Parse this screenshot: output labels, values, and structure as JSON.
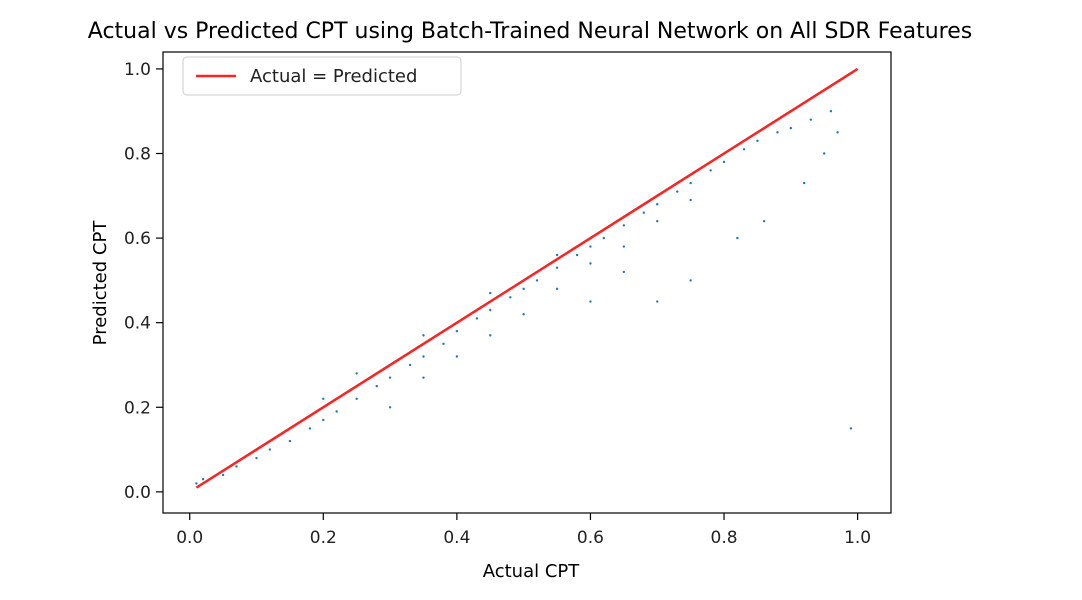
{
  "chart_data": {
    "type": "scatter",
    "title": "Actual vs Predicted CPT using Batch-Trained Neural Network on All SDR Features",
    "xlabel": "Actual CPT",
    "ylabel": "Predicted CPT",
    "xlim": [
      -0.04,
      1.05
    ],
    "ylim": [
      -0.05,
      1.04
    ],
    "xticks": [
      0.0,
      0.2,
      0.4,
      0.6,
      0.8,
      1.0
    ],
    "xtick_labels": [
      "0.0",
      "0.2",
      "0.4",
      "0.6",
      "0.8",
      "1.0"
    ],
    "yticks": [
      0.0,
      0.2,
      0.4,
      0.6,
      0.8,
      1.0
    ],
    "ytick_labels": [
      "0.0",
      "0.2",
      "0.4",
      "0.6",
      "0.8",
      "1.0"
    ],
    "grid": false,
    "legend": {
      "placement": "top-left",
      "entries": [
        "Actual = Predicted"
      ]
    },
    "series": [
      {
        "type": "scatter",
        "color": "#1f77b4",
        "points": [
          [
            0.01,
            0.02
          ],
          [
            0.02,
            0.03
          ],
          [
            0.03,
            0.03
          ],
          [
            0.05,
            0.04
          ],
          [
            0.07,
            0.06
          ],
          [
            0.1,
            0.08
          ],
          [
            0.12,
            0.1
          ],
          [
            0.15,
            0.12
          ],
          [
            0.18,
            0.15
          ],
          [
            0.2,
            0.17
          ],
          [
            0.22,
            0.19
          ],
          [
            0.25,
            0.22
          ],
          [
            0.28,
            0.25
          ],
          [
            0.3,
            0.27
          ],
          [
            0.33,
            0.3
          ],
          [
            0.35,
            0.32
          ],
          [
            0.38,
            0.35
          ],
          [
            0.4,
            0.38
          ],
          [
            0.43,
            0.41
          ],
          [
            0.45,
            0.43
          ],
          [
            0.48,
            0.46
          ],
          [
            0.5,
            0.48
          ],
          [
            0.52,
            0.5
          ],
          [
            0.55,
            0.53
          ],
          [
            0.58,
            0.56
          ],
          [
            0.6,
            0.58
          ],
          [
            0.62,
            0.6
          ],
          [
            0.65,
            0.63
          ],
          [
            0.68,
            0.66
          ],
          [
            0.7,
            0.68
          ],
          [
            0.73,
            0.71
          ],
          [
            0.75,
            0.73
          ],
          [
            0.78,
            0.76
          ],
          [
            0.8,
            0.78
          ],
          [
            0.83,
            0.81
          ],
          [
            0.85,
            0.83
          ],
          [
            0.88,
            0.85
          ],
          [
            0.9,
            0.86
          ],
          [
            0.93,
            0.88
          ],
          [
            0.96,
            0.9
          ],
          [
            0.3,
            0.2
          ],
          [
            0.35,
            0.27
          ],
          [
            0.4,
            0.32
          ],
          [
            0.45,
            0.37
          ],
          [
            0.5,
            0.42
          ],
          [
            0.55,
            0.48
          ],
          [
            0.6,
            0.54
          ],
          [
            0.65,
            0.58
          ],
          [
            0.7,
            0.64
          ],
          [
            0.75,
            0.69
          ],
          [
            0.2,
            0.22
          ],
          [
            0.25,
            0.28
          ],
          [
            0.35,
            0.37
          ],
          [
            0.45,
            0.47
          ],
          [
            0.55,
            0.56
          ],
          [
            0.92,
            0.73
          ],
          [
            0.86,
            0.64
          ],
          [
            0.82,
            0.6
          ],
          [
            0.75,
            0.5
          ],
          [
            0.7,
            0.45
          ],
          [
            0.97,
            0.85
          ],
          [
            0.95,
            0.8
          ],
          [
            0.99,
            0.15
          ],
          [
            0.6,
            0.45
          ],
          [
            0.65,
            0.52
          ]
        ]
      },
      {
        "type": "line",
        "name": "Actual = Predicted",
        "color": "#ff2020",
        "x": [
          0.01,
          1.0
        ],
        "y": [
          0.01,
          1.0
        ]
      }
    ]
  }
}
